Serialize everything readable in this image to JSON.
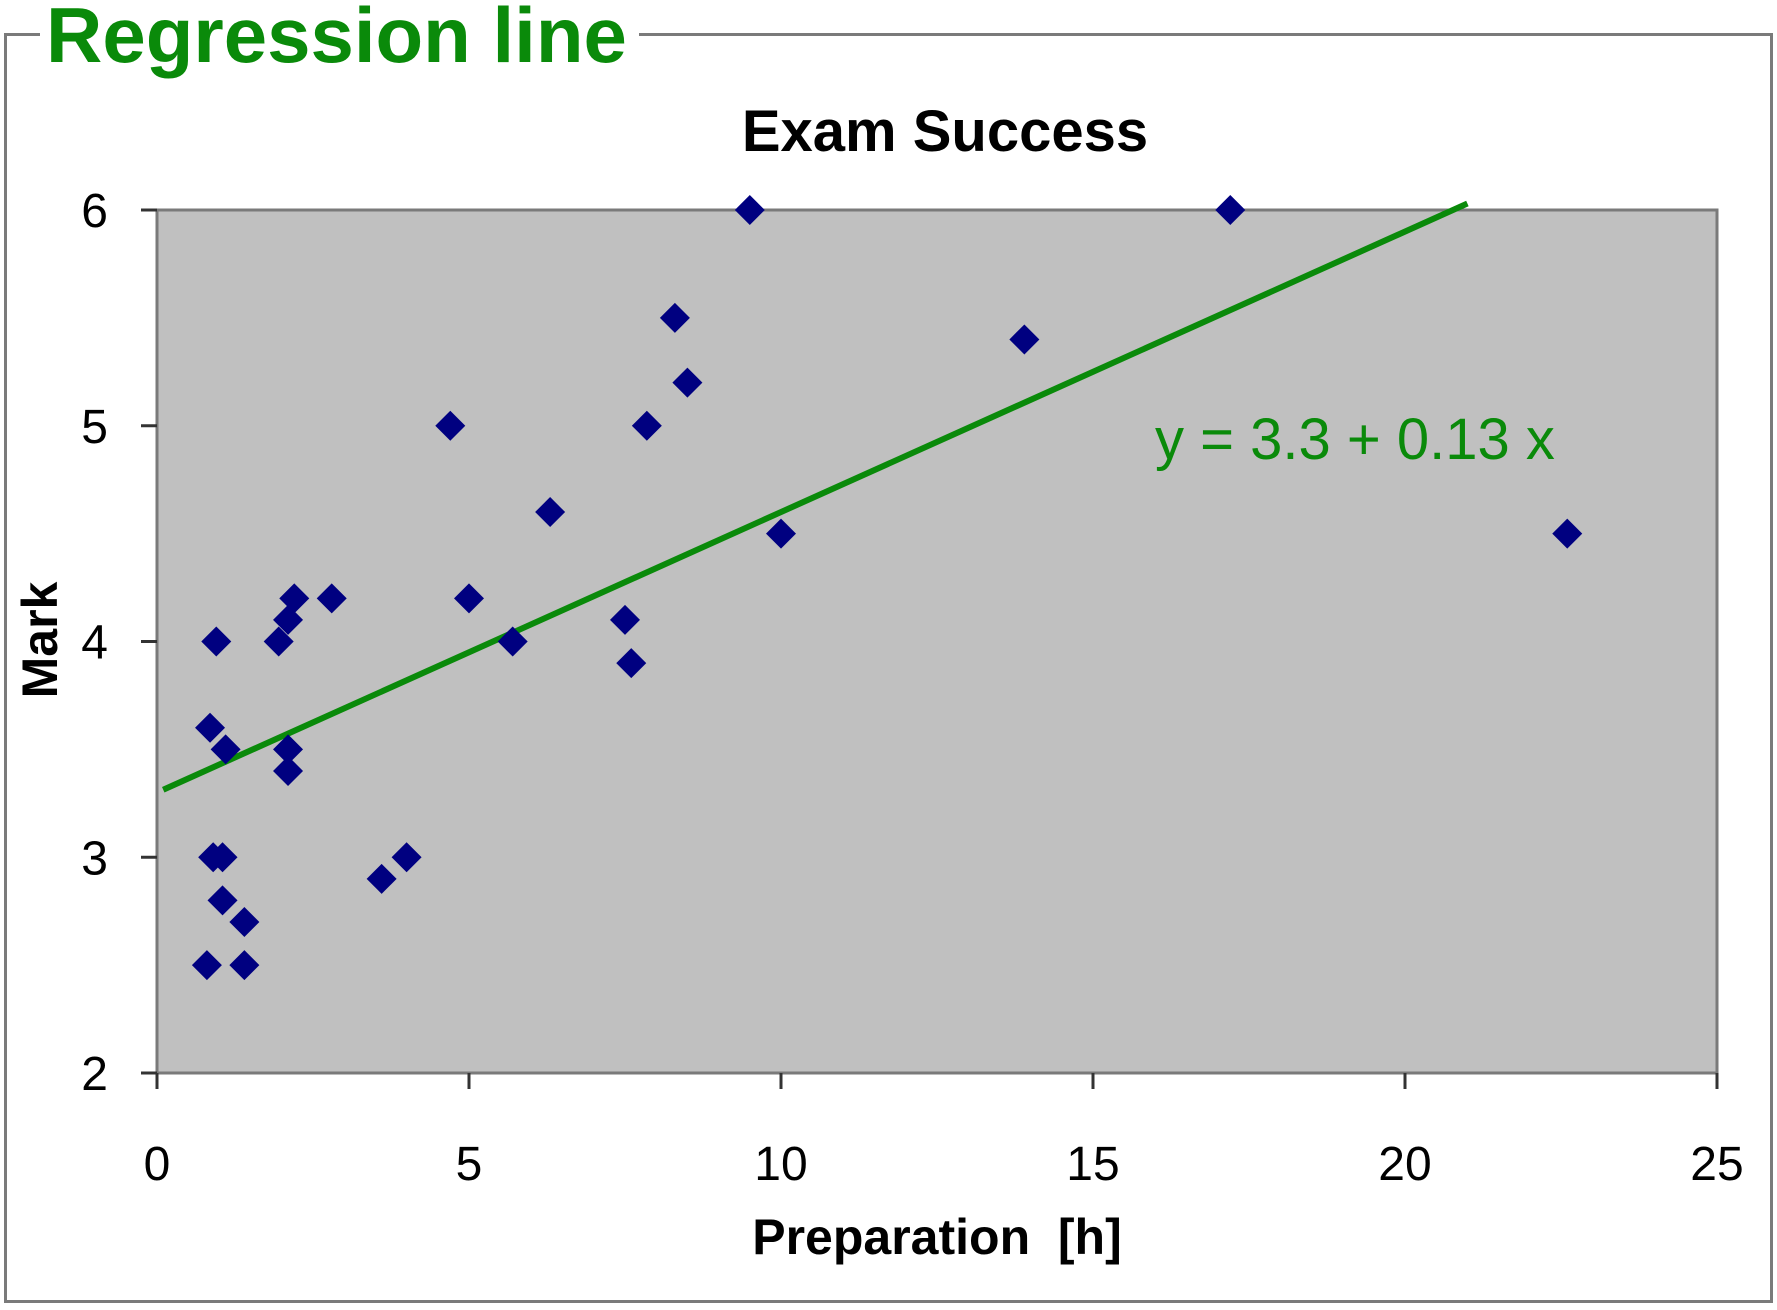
{
  "page": {
    "title": "Regression line"
  },
  "chart_data": {
    "type": "scatter",
    "title": "Exam Success",
    "xlabel": "Preparation  [h]",
    "ylabel": "Mark",
    "xlim": [
      0,
      25
    ],
    "ylim": [
      2,
      6
    ],
    "x_ticks": [
      0,
      5,
      10,
      15,
      20,
      25
    ],
    "y_ticks": [
      2,
      3,
      4,
      5,
      6
    ],
    "grid": false,
    "colors": {
      "plot_area": "#c0c0c0",
      "points": "#000080",
      "regression_line": "#0a8a0a",
      "frame": "#7a7a7a"
    },
    "series": [
      {
        "marker": "diamond",
        "points": [
          {
            "x": 0.8,
            "y": 2.5
          },
          {
            "x": 1.4,
            "y": 2.5
          },
          {
            "x": 1.4,
            "y": 2.7
          },
          {
            "x": 1.05,
            "y": 2.8
          },
          {
            "x": 0.9,
            "y": 3.0
          },
          {
            "x": 1.05,
            "y": 3.0
          },
          {
            "x": 0.85,
            "y": 3.6
          },
          {
            "x": 1.1,
            "y": 3.5
          },
          {
            "x": 0.95,
            "y": 4.0
          },
          {
            "x": 2.1,
            "y": 3.4
          },
          {
            "x": 2.1,
            "y": 3.5
          },
          {
            "x": 1.95,
            "y": 4.0
          },
          {
            "x": 2.1,
            "y": 4.1
          },
          {
            "x": 2.2,
            "y": 4.2
          },
          {
            "x": 2.8,
            "y": 4.2
          },
          {
            "x": 3.6,
            "y": 2.9
          },
          {
            "x": 4.0,
            "y": 3.0
          },
          {
            "x": 4.7,
            "y": 5.0
          },
          {
            "x": 5.0,
            "y": 4.2
          },
          {
            "x": 5.7,
            "y": 4.0
          },
          {
            "x": 6.3,
            "y": 4.6
          },
          {
            "x": 7.5,
            "y": 4.1
          },
          {
            "x": 7.6,
            "y": 3.9
          },
          {
            "x": 7.85,
            "y": 5.0
          },
          {
            "x": 8.3,
            "y": 5.5
          },
          {
            "x": 8.5,
            "y": 5.2
          },
          {
            "x": 9.5,
            "y": 6.0
          },
          {
            "x": 10.0,
            "y": 4.5
          },
          {
            "x": 13.9,
            "y": 5.4
          },
          {
            "x": 17.2,
            "y": 6.0
          },
          {
            "x": 22.6,
            "y": 4.5
          }
        ]
      }
    ],
    "regression": {
      "equation": "y = 3.3 + 0.13 x",
      "intercept": 3.3,
      "slope": 0.13,
      "x_start": 0.1,
      "x_end": 21.0
    }
  }
}
